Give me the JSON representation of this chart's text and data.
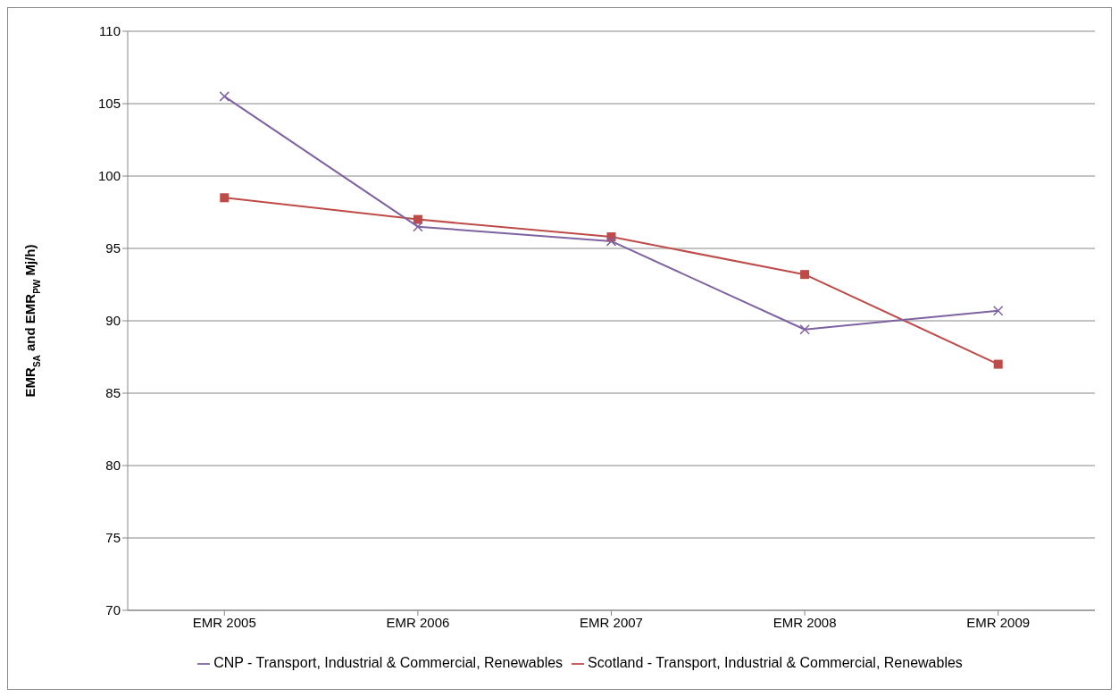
{
  "chart_data": {
    "type": "line",
    "ylabel": "EMR$_{SA}$ and EMR$_{PW}$ Mj/h)",
    "categories": [
      "EMR 2005",
      "EMR 2006",
      "EMR 2007",
      "EMR 2008",
      "EMR 2009"
    ],
    "series": [
      {
        "name": "Scotland - Transport, Industrial & Commercial, Renewables",
        "color": "#be4b48",
        "marker": "square",
        "values": [
          98.5,
          97.0,
          95.8,
          93.2,
          87.0
        ]
      },
      {
        "name": "CNP - Transport, Industrial & Commercial, Renewables",
        "color": "#7e62a1",
        "marker": "cross",
        "values": [
          105.5,
          96.5,
          95.5,
          89.4,
          90.7
        ]
      }
    ],
    "ylim": [
      70,
      110
    ],
    "yticks": [
      70,
      75,
      80,
      85,
      90,
      95,
      100,
      105,
      110
    ],
    "grid": "y",
    "legend": "bottom"
  }
}
